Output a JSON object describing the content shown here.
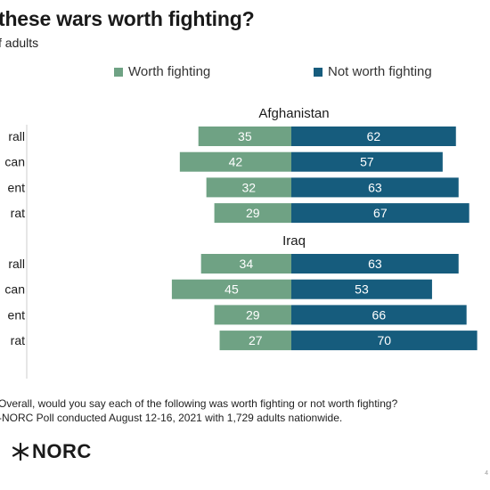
{
  "title": "these wars worth fighting?",
  "subtitle": "f adults",
  "footnote_question": "Overall, would you say each of the following was worth fighting or not worth fighting?",
  "footnote_source": "-NORC Poll conducted August 12-16, 2021 with 1,729 adults nationwide.",
  "logo_text": "NORC",
  "corner_mark": "4",
  "colors": {
    "worth": "#6fa284",
    "not_worth": "#165c7d",
    "axis": "#cccccc"
  },
  "chart_data": {
    "type": "bar",
    "orientation": "horizontal-diverging",
    "legend": {
      "position": "top",
      "entries": [
        "Worth fighting",
        "Not worth fighting"
      ]
    },
    "groups": [
      {
        "title": "Afghanistan",
        "categories": [
          "rall",
          "can",
          "ent",
          "rat"
        ],
        "series": [
          {
            "name": "Worth fighting",
            "values": [
              35,
              42,
              32,
              29
            ]
          },
          {
            "name": "Not worth fighting",
            "values": [
              62,
              57,
              63,
              67
            ]
          }
        ]
      },
      {
        "title": "Iraq",
        "categories": [
          "rall",
          "can",
          "ent",
          "rat"
        ],
        "series": [
          {
            "name": "Worth fighting",
            "values": [
              34,
              45,
              29,
              27
            ]
          },
          {
            "name": "Not worth fighting",
            "values": [
              63,
              53,
              66,
              70
            ]
          }
        ]
      }
    ]
  }
}
